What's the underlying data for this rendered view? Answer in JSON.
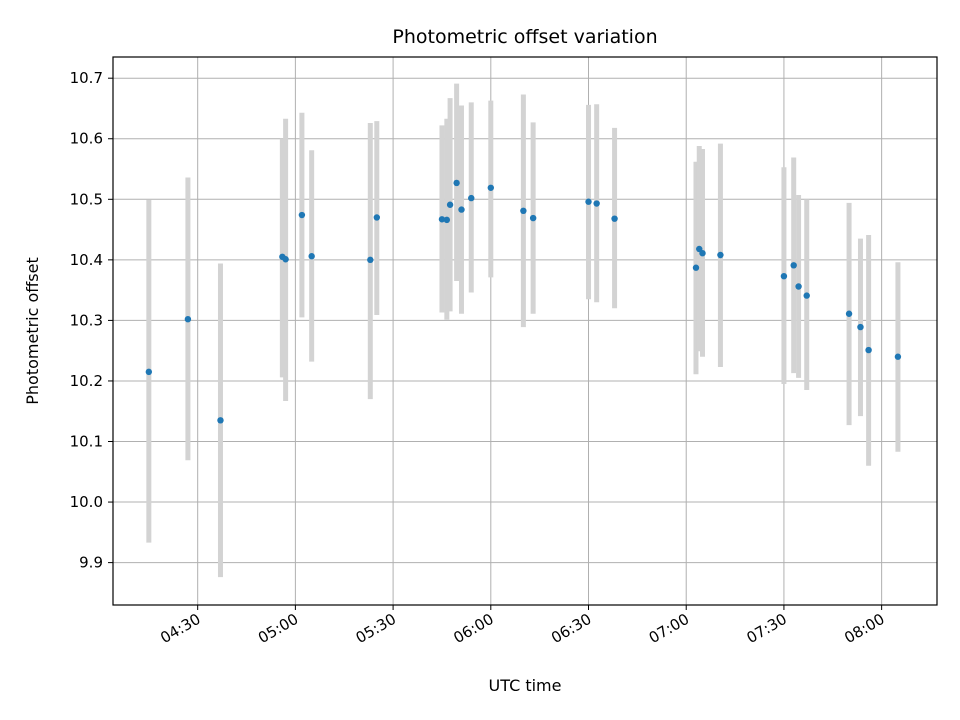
{
  "chart_data": {
    "type": "scatter",
    "title": "Photometric offset variation",
    "xlabel": "UTC time",
    "ylabel": "Photometric offset",
    "xlim": [
      "04:04",
      "08:17"
    ],
    "ylim": [
      9.83,
      10.735
    ],
    "xticks": [
      "04:30",
      "05:00",
      "05:30",
      "06:00",
      "06:30",
      "07:00",
      "07:30",
      "08:00"
    ],
    "yticks": [
      9.9,
      10.0,
      10.1,
      10.2,
      10.3,
      10.4,
      10.5,
      10.6,
      10.7
    ],
    "grid": true,
    "colors": {
      "point": "#1f77b4",
      "errorbar": "#d3d3d3",
      "grid": "#b0b0b0"
    },
    "points": [
      {
        "t": "04:15",
        "y": 10.215,
        "lo": 9.933,
        "hi": 10.499
      },
      {
        "t": "04:27",
        "y": 10.302,
        "lo": 10.069,
        "hi": 10.536
      },
      {
        "t": "04:37",
        "y": 10.135,
        "lo": 9.876,
        "hi": 10.394
      },
      {
        "t": "04:56",
        "y": 10.405,
        "lo": 10.206,
        "hi": 10.6
      },
      {
        "t": "04:57",
        "y": 10.401,
        "lo": 10.167,
        "hi": 10.633
      },
      {
        "t": "05:02",
        "y": 10.474,
        "lo": 10.305,
        "hi": 10.643
      },
      {
        "t": "05:05",
        "y": 10.406,
        "lo": 10.232,
        "hi": 10.581
      },
      {
        "t": "05:23",
        "y": 10.4,
        "lo": 10.17,
        "hi": 10.626
      },
      {
        "t": "05:25",
        "y": 10.47,
        "lo": 10.309,
        "hi": 10.629
      },
      {
        "t": "05:45",
        "y": 10.467,
        "lo": 10.313,
        "hi": 10.622
      },
      {
        "t": "05:46.5",
        "y": 10.466,
        "lo": 10.301,
        "hi": 10.633
      },
      {
        "t": "05:47.5",
        "y": 10.491,
        "lo": 10.315,
        "hi": 10.667
      },
      {
        "t": "05:49.5",
        "y": 10.527,
        "lo": 10.365,
        "hi": 10.691
      },
      {
        "t": "05:51",
        "y": 10.483,
        "lo": 10.311,
        "hi": 10.655
      },
      {
        "t": "05:54",
        "y": 10.502,
        "lo": 10.346,
        "hi": 10.66
      },
      {
        "t": "06:00",
        "y": 10.519,
        "lo": 10.371,
        "hi": 10.663
      },
      {
        "t": "06:10",
        "y": 10.481,
        "lo": 10.289,
        "hi": 10.673
      },
      {
        "t": "06:13",
        "y": 10.469,
        "lo": 10.311,
        "hi": 10.627
      },
      {
        "t": "06:30",
        "y": 10.496,
        "lo": 10.335,
        "hi": 10.656
      },
      {
        "t": "06:32.5",
        "y": 10.493,
        "lo": 10.33,
        "hi": 10.657
      },
      {
        "t": "06:38",
        "y": 10.468,
        "lo": 10.32,
        "hi": 10.618
      },
      {
        "t": "07:03",
        "y": 10.387,
        "lo": 10.211,
        "hi": 10.562
      },
      {
        "t": "07:04",
        "y": 10.418,
        "lo": 10.249,
        "hi": 10.588
      },
      {
        "t": "07:05",
        "y": 10.411,
        "lo": 10.24,
        "hi": 10.583
      },
      {
        "t": "07:10.5",
        "y": 10.408,
        "lo": 10.223,
        "hi": 10.592
      },
      {
        "t": "07:30",
        "y": 10.373,
        "lo": 10.195,
        "hi": 10.553
      },
      {
        "t": "07:33",
        "y": 10.391,
        "lo": 10.213,
        "hi": 10.569
      },
      {
        "t": "07:34.5",
        "y": 10.356,
        "lo": 10.205,
        "hi": 10.507
      },
      {
        "t": "07:37",
        "y": 10.341,
        "lo": 10.185,
        "hi": 10.5
      },
      {
        "t": "07:50",
        "y": 10.311,
        "lo": 10.127,
        "hi": 10.494
      },
      {
        "t": "07:53.5",
        "y": 10.289,
        "lo": 10.142,
        "hi": 10.435
      },
      {
        "t": "07:56",
        "y": 10.251,
        "lo": 10.06,
        "hi": 10.441
      },
      {
        "t": "08:05",
        "y": 10.24,
        "lo": 10.083,
        "hi": 10.396
      }
    ]
  }
}
